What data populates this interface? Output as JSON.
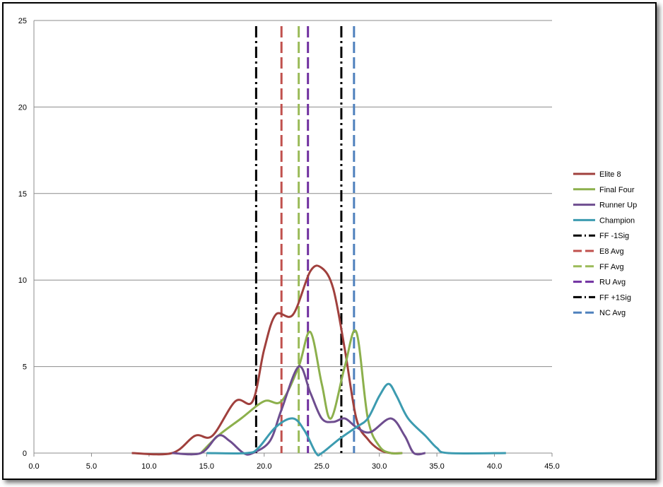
{
  "chart_data": {
    "type": "line",
    "title": "",
    "xlabel": "",
    "ylabel": "",
    "xlim": [
      0,
      45
    ],
    "ylim": [
      0,
      25
    ],
    "x_ticks": [
      "0.0",
      "5.0",
      "10.0",
      "15.0",
      "20.0",
      "25.0",
      "30.0",
      "35.0",
      "40.0",
      "45.0"
    ],
    "y_ticks": [
      "0",
      "5",
      "10",
      "15",
      "20",
      "25"
    ],
    "grid": true,
    "legend_position": "right",
    "series": [
      {
        "name": "Elite 8",
        "color": "#A0403D",
        "style": "solid",
        "points": [
          [
            8.5,
            0
          ],
          [
            12,
            0
          ],
          [
            14,
            1
          ],
          [
            15.5,
            1
          ],
          [
            17.5,
            3
          ],
          [
            19,
            3
          ],
          [
            20,
            6
          ],
          [
            21,
            8
          ],
          [
            22.5,
            8
          ],
          [
            24,
            10.5
          ],
          [
            25,
            10.7
          ],
          [
            26,
            9.5
          ],
          [
            27,
            6
          ],
          [
            28,
            2
          ],
          [
            29,
            0.8
          ],
          [
            30,
            0.2
          ],
          [
            31,
            0
          ],
          [
            32,
            0
          ]
        ]
      },
      {
        "name": "Final Four",
        "color": "#8CB04C",
        "style": "solid",
        "points": [
          [
            14.5,
            0
          ],
          [
            16,
            1
          ],
          [
            18,
            2
          ],
          [
            20,
            3
          ],
          [
            21.5,
            3
          ],
          [
            23,
            5
          ],
          [
            24,
            7
          ],
          [
            25,
            4
          ],
          [
            25.8,
            2
          ],
          [
            27,
            5
          ],
          [
            28,
            7
          ],
          [
            29,
            2
          ],
          [
            30,
            0.4
          ],
          [
            31,
            0
          ],
          [
            32,
            0
          ]
        ]
      },
      {
        "name": "Runner Up",
        "color": "#6E4D8F",
        "style": "solid",
        "points": [
          [
            12,
            0
          ],
          [
            14.5,
            0
          ],
          [
            16,
            1
          ],
          [
            17,
            0.7
          ],
          [
            18.2,
            0
          ],
          [
            19,
            0
          ],
          [
            20.5,
            0.7
          ],
          [
            21.5,
            2.5
          ],
          [
            23,
            5
          ],
          [
            24,
            3.5
          ],
          [
            25,
            2
          ],
          [
            26,
            1.8
          ],
          [
            27,
            2
          ],
          [
            28,
            1.5
          ],
          [
            29.2,
            1.2
          ],
          [
            31,
            2
          ],
          [
            32.2,
            1
          ],
          [
            33,
            0
          ],
          [
            34,
            0
          ]
        ]
      },
      {
        "name": "Champion",
        "color": "#3C9BB0",
        "style": "solid",
        "points": [
          [
            15,
            0
          ],
          [
            18.5,
            0
          ],
          [
            19.5,
            0.3
          ],
          [
            21,
            1.5
          ],
          [
            22.5,
            2
          ],
          [
            23.5,
            1.3
          ],
          [
            24.5,
            0
          ],
          [
            25,
            0
          ],
          [
            26.5,
            0.8
          ],
          [
            28,
            1.5
          ],
          [
            29,
            2
          ],
          [
            30,
            3.3
          ],
          [
            30.8,
            4
          ],
          [
            31.5,
            3.3
          ],
          [
            32.5,
            2
          ],
          [
            34,
            1
          ],
          [
            35,
            0.3
          ],
          [
            36,
            0
          ],
          [
            41,
            0
          ]
        ]
      },
      {
        "name": "FF -1Sig",
        "color": "#000000",
        "style": "dash-dot",
        "x": 19.3
      },
      {
        "name": "E8 Avg",
        "color": "#C0504D",
        "style": "dash",
        "x": 21.5
      },
      {
        "name": "FF Avg",
        "color": "#9BBB59",
        "style": "dash",
        "x": 23.0
      },
      {
        "name": "RU Avg",
        "color": "#7030A0",
        "style": "dash",
        "x": 23.8
      },
      {
        "name": "FF +1Sig",
        "color": "#000000",
        "style": "dash-dot",
        "x": 26.7
      },
      {
        "name": "NC Avg",
        "color": "#4F81BD",
        "style": "dash",
        "x": 27.8
      }
    ]
  }
}
